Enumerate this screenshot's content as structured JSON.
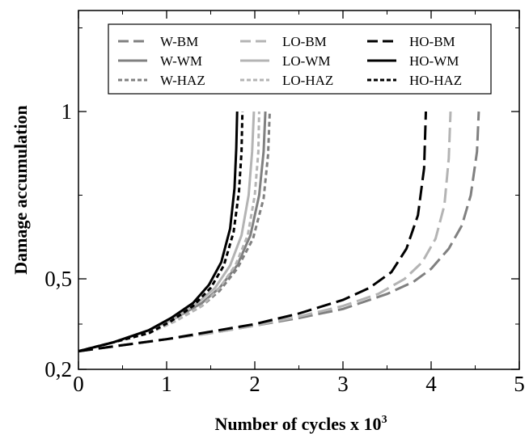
{
  "chart_data": {
    "type": "line",
    "title": "",
    "xlabel": "Number of cycles x 10",
    "xlabel_superscript": "3",
    "ylabel": "Damage accumulation",
    "xlim": [
      0,
      5
    ],
    "ylim": [
      0.2,
      1.4
    ],
    "xticks": [
      0,
      1,
      2,
      3,
      4,
      5
    ],
    "xtick_labels": [
      "0",
      "1",
      "2",
      "3",
      "4",
      "5"
    ],
    "yticks": [
      0.2,
      0.5,
      1
    ],
    "ytick_labels": [
      "0,2",
      "0,5",
      "1"
    ],
    "grid": false,
    "legend_position": "top",
    "colors": {
      "W": "#808080",
      "LO": "#b4b4b4",
      "HO": "#000000"
    },
    "series": [
      {
        "name": "W-BM",
        "group": "W",
        "dash": "long-dash",
        "x": [
          0,
          0.5,
          1,
          1.5,
          2,
          2.5,
          3,
          3.5,
          3.8,
          4.0,
          4.2,
          4.35,
          4.45,
          4.52,
          4.54
        ],
        "y": [
          0.26,
          0.28,
          0.3,
          0.32,
          0.345,
          0.37,
          0.4,
          0.45,
          0.49,
          0.53,
          0.59,
          0.66,
          0.75,
          0.88,
          1.0
        ]
      },
      {
        "name": "W-WM",
        "group": "W",
        "dash": "solid",
        "x": [
          0,
          0.4,
          0.8,
          1.1,
          1.4,
          1.6,
          1.8,
          1.95,
          2.05,
          2.1,
          2.12
        ],
        "y": [
          0.26,
          0.29,
          0.33,
          0.37,
          0.42,
          0.47,
          0.54,
          0.63,
          0.75,
          0.88,
          1.0
        ]
      },
      {
        "name": "W-HAZ",
        "group": "W",
        "dash": "short-dash",
        "x": [
          0,
          0.4,
          0.8,
          1.1,
          1.4,
          1.6,
          1.8,
          1.98,
          2.1,
          2.15,
          2.17
        ],
        "y": [
          0.26,
          0.29,
          0.32,
          0.36,
          0.41,
          0.46,
          0.53,
          0.62,
          0.74,
          0.87,
          1.0
        ]
      },
      {
        "name": "LO-BM",
        "group": "LO",
        "dash": "long-dash",
        "x": [
          0,
          0.5,
          1,
          1.5,
          2,
          2.5,
          3,
          3.4,
          3.7,
          3.9,
          4.05,
          4.15,
          4.2,
          4.22
        ],
        "y": [
          0.26,
          0.28,
          0.3,
          0.32,
          0.345,
          0.375,
          0.41,
          0.45,
          0.5,
          0.55,
          0.62,
          0.72,
          0.86,
          1.0
        ]
      },
      {
        "name": "LO-WM",
        "group": "LO",
        "dash": "solid",
        "x": [
          0,
          0.4,
          0.8,
          1.1,
          1.35,
          1.55,
          1.72,
          1.85,
          1.93,
          1.97,
          1.99
        ],
        "y": [
          0.26,
          0.29,
          0.33,
          0.37,
          0.42,
          0.47,
          0.54,
          0.63,
          0.75,
          0.88,
          1.0
        ]
      },
      {
        "name": "LO-HAZ",
        "group": "LO",
        "dash": "short-dash",
        "x": [
          0,
          0.4,
          0.8,
          1.1,
          1.4,
          1.6,
          1.78,
          1.92,
          2.0,
          2.04,
          2.05
        ],
        "y": [
          0.26,
          0.29,
          0.32,
          0.36,
          0.41,
          0.47,
          0.54,
          0.63,
          0.75,
          0.88,
          1.0
        ]
      },
      {
        "name": "HO-BM",
        "group": "HO",
        "dash": "long-dash",
        "x": [
          0,
          0.5,
          1,
          1.5,
          2,
          2.5,
          3,
          3.3,
          3.55,
          3.72,
          3.85,
          3.92,
          3.94
        ],
        "y": [
          0.26,
          0.28,
          0.3,
          0.325,
          0.35,
          0.385,
          0.43,
          0.47,
          0.52,
          0.59,
          0.69,
          0.83,
          1.0
        ]
      },
      {
        "name": "HO-WM",
        "group": "HO",
        "dash": "solid",
        "x": [
          0,
          0.4,
          0.8,
          1.05,
          1.3,
          1.48,
          1.62,
          1.72,
          1.77,
          1.79,
          1.8
        ],
        "y": [
          0.26,
          0.29,
          0.33,
          0.37,
          0.42,
          0.48,
          0.55,
          0.65,
          0.77,
          0.89,
          1.0
        ]
      },
      {
        "name": "HO-HAZ",
        "group": "HO",
        "dash": "short-dash",
        "x": [
          0,
          0.4,
          0.8,
          1.05,
          1.3,
          1.5,
          1.65,
          1.76,
          1.82,
          1.85,
          1.86
        ],
        "y": [
          0.26,
          0.29,
          0.32,
          0.36,
          0.41,
          0.47,
          0.54,
          0.64,
          0.76,
          0.88,
          1.0
        ]
      }
    ]
  }
}
